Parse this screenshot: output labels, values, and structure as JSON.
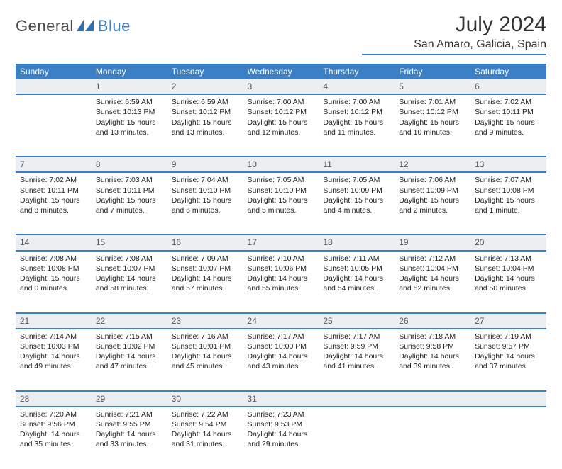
{
  "brand": {
    "word1": "General",
    "word2": "Blue",
    "color1": "#5a5a5a",
    "color2": "#3b7fc4"
  },
  "title": "July 2024",
  "location": "San Amaro, Galicia, Spain",
  "header_bg": "#3b7fc4",
  "daynum_bg": "#eceff1",
  "days": [
    "Sunday",
    "Monday",
    "Tuesday",
    "Wednesday",
    "Thursday",
    "Friday",
    "Saturday"
  ],
  "weeks": [
    {
      "nums": [
        "",
        "1",
        "2",
        "3",
        "4",
        "5",
        "6"
      ],
      "cells": [
        {
          "sunrise": "",
          "sunset": "",
          "daylight": ""
        },
        {
          "sunrise": "Sunrise: 6:59 AM",
          "sunset": "Sunset: 10:13 PM",
          "daylight": "Daylight: 15 hours and 13 minutes."
        },
        {
          "sunrise": "Sunrise: 6:59 AM",
          "sunset": "Sunset: 10:12 PM",
          "daylight": "Daylight: 15 hours and 13 minutes."
        },
        {
          "sunrise": "Sunrise: 7:00 AM",
          "sunset": "Sunset: 10:12 PM",
          "daylight": "Daylight: 15 hours and 12 minutes."
        },
        {
          "sunrise": "Sunrise: 7:00 AM",
          "sunset": "Sunset: 10:12 PM",
          "daylight": "Daylight: 15 hours and 11 minutes."
        },
        {
          "sunrise": "Sunrise: 7:01 AM",
          "sunset": "Sunset: 10:12 PM",
          "daylight": "Daylight: 15 hours and 10 minutes."
        },
        {
          "sunrise": "Sunrise: 7:02 AM",
          "sunset": "Sunset: 10:11 PM",
          "daylight": "Daylight: 15 hours and 9 minutes."
        }
      ]
    },
    {
      "nums": [
        "7",
        "8",
        "9",
        "10",
        "11",
        "12",
        "13"
      ],
      "cells": [
        {
          "sunrise": "Sunrise: 7:02 AM",
          "sunset": "Sunset: 10:11 PM",
          "daylight": "Daylight: 15 hours and 8 minutes."
        },
        {
          "sunrise": "Sunrise: 7:03 AM",
          "sunset": "Sunset: 10:11 PM",
          "daylight": "Daylight: 15 hours and 7 minutes."
        },
        {
          "sunrise": "Sunrise: 7:04 AM",
          "sunset": "Sunset: 10:10 PM",
          "daylight": "Daylight: 15 hours and 6 minutes."
        },
        {
          "sunrise": "Sunrise: 7:05 AM",
          "sunset": "Sunset: 10:10 PM",
          "daylight": "Daylight: 15 hours and 5 minutes."
        },
        {
          "sunrise": "Sunrise: 7:05 AM",
          "sunset": "Sunset: 10:09 PM",
          "daylight": "Daylight: 15 hours and 4 minutes."
        },
        {
          "sunrise": "Sunrise: 7:06 AM",
          "sunset": "Sunset: 10:09 PM",
          "daylight": "Daylight: 15 hours and 2 minutes."
        },
        {
          "sunrise": "Sunrise: 7:07 AM",
          "sunset": "Sunset: 10:08 PM",
          "daylight": "Daylight: 15 hours and 1 minute."
        }
      ]
    },
    {
      "nums": [
        "14",
        "15",
        "16",
        "17",
        "18",
        "19",
        "20"
      ],
      "cells": [
        {
          "sunrise": "Sunrise: 7:08 AM",
          "sunset": "Sunset: 10:08 PM",
          "daylight": "Daylight: 15 hours and 0 minutes."
        },
        {
          "sunrise": "Sunrise: 7:08 AM",
          "sunset": "Sunset: 10:07 PM",
          "daylight": "Daylight: 14 hours and 58 minutes."
        },
        {
          "sunrise": "Sunrise: 7:09 AM",
          "sunset": "Sunset: 10:07 PM",
          "daylight": "Daylight: 14 hours and 57 minutes."
        },
        {
          "sunrise": "Sunrise: 7:10 AM",
          "sunset": "Sunset: 10:06 PM",
          "daylight": "Daylight: 14 hours and 55 minutes."
        },
        {
          "sunrise": "Sunrise: 7:11 AM",
          "sunset": "Sunset: 10:05 PM",
          "daylight": "Daylight: 14 hours and 54 minutes."
        },
        {
          "sunrise": "Sunrise: 7:12 AM",
          "sunset": "Sunset: 10:04 PM",
          "daylight": "Daylight: 14 hours and 52 minutes."
        },
        {
          "sunrise": "Sunrise: 7:13 AM",
          "sunset": "Sunset: 10:04 PM",
          "daylight": "Daylight: 14 hours and 50 minutes."
        }
      ]
    },
    {
      "nums": [
        "21",
        "22",
        "23",
        "24",
        "25",
        "26",
        "27"
      ],
      "cells": [
        {
          "sunrise": "Sunrise: 7:14 AM",
          "sunset": "Sunset: 10:03 PM",
          "daylight": "Daylight: 14 hours and 49 minutes."
        },
        {
          "sunrise": "Sunrise: 7:15 AM",
          "sunset": "Sunset: 10:02 PM",
          "daylight": "Daylight: 14 hours and 47 minutes."
        },
        {
          "sunrise": "Sunrise: 7:16 AM",
          "sunset": "Sunset: 10:01 PM",
          "daylight": "Daylight: 14 hours and 45 minutes."
        },
        {
          "sunrise": "Sunrise: 7:17 AM",
          "sunset": "Sunset: 10:00 PM",
          "daylight": "Daylight: 14 hours and 43 minutes."
        },
        {
          "sunrise": "Sunrise: 7:17 AM",
          "sunset": "Sunset: 9:59 PM",
          "daylight": "Daylight: 14 hours and 41 minutes."
        },
        {
          "sunrise": "Sunrise: 7:18 AM",
          "sunset": "Sunset: 9:58 PM",
          "daylight": "Daylight: 14 hours and 39 minutes."
        },
        {
          "sunrise": "Sunrise: 7:19 AM",
          "sunset": "Sunset: 9:57 PM",
          "daylight": "Daylight: 14 hours and 37 minutes."
        }
      ]
    },
    {
      "nums": [
        "28",
        "29",
        "30",
        "31",
        "",
        "",
        ""
      ],
      "cells": [
        {
          "sunrise": "Sunrise: 7:20 AM",
          "sunset": "Sunset: 9:56 PM",
          "daylight": "Daylight: 14 hours and 35 minutes."
        },
        {
          "sunrise": "Sunrise: 7:21 AM",
          "sunset": "Sunset: 9:55 PM",
          "daylight": "Daylight: 14 hours and 33 minutes."
        },
        {
          "sunrise": "Sunrise: 7:22 AM",
          "sunset": "Sunset: 9:54 PM",
          "daylight": "Daylight: 14 hours and 31 minutes."
        },
        {
          "sunrise": "Sunrise: 7:23 AM",
          "sunset": "Sunset: 9:53 PM",
          "daylight": "Daylight: 14 hours and 29 minutes."
        },
        {
          "sunrise": "",
          "sunset": "",
          "daylight": ""
        },
        {
          "sunrise": "",
          "sunset": "",
          "daylight": ""
        },
        {
          "sunrise": "",
          "sunset": "",
          "daylight": ""
        }
      ]
    }
  ]
}
